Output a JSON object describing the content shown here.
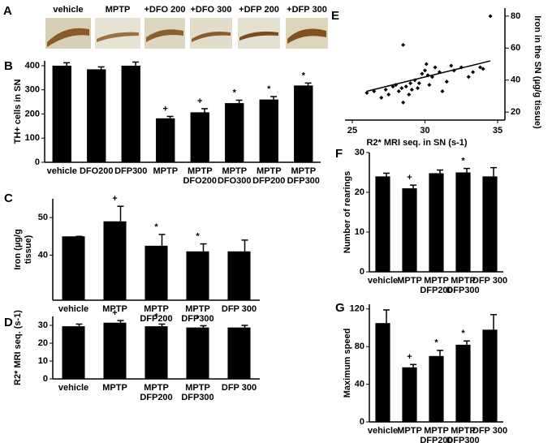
{
  "panel_a": {
    "letter": "A",
    "labels": [
      "vehicle",
      "MPTP",
      "+DFO 200",
      "+DFO 300",
      "+DFP 200",
      "+DFP 300"
    ]
  },
  "chart_data": [
    {
      "type": "bar",
      "panel": "B",
      "ylabel": "TH+ cells in SN",
      "color": "#000000",
      "categories": [
        "vehicle",
        "DFO200",
        "DFP300",
        "MPTP",
        [
          "MPTP",
          "DFO200"
        ],
        [
          "MPTP",
          "DFO300"
        ],
        [
          "MPTP",
          "DFP200"
        ],
        [
          "MPTP",
          "DFP300"
        ]
      ],
      "values": [
        400,
        385,
        400,
        182,
        207,
        245,
        260,
        318
      ],
      "errors": [
        12,
        10,
        15,
        8,
        15,
        12,
        12,
        10
      ],
      "markers": [
        null,
        null,
        null,
        "+",
        "+",
        "*",
        "*",
        "*"
      ],
      "ylim": [
        0,
        420
      ],
      "yticks": [
        0,
        100,
        200,
        300,
        400
      ]
    },
    {
      "type": "bar",
      "panel": "C",
      "ylabel": [
        "Iron (µg/g",
        "tissue)"
      ],
      "color": "#000000",
      "categories": [
        "vehicle",
        "MPTP",
        [
          "MPTP",
          "DFP200"
        ],
        [
          "MPTP",
          "DFP300"
        ],
        "DFP 300"
      ],
      "values": [
        45,
        49,
        42.5,
        41,
        41
      ],
      "errors": [
        0,
        4,
        3,
        2,
        3
      ],
      "markers": [
        null,
        "+",
        "*",
        "*",
        null
      ],
      "ylim": [
        28,
        55
      ],
      "yticks": [
        40,
        50
      ]
    },
    {
      "type": "bar",
      "panel": "D",
      "ylabel": "R2* MRI seq. (s-1)",
      "color": "#000000",
      "categories": [
        "vehicle",
        "MPTP",
        [
          "MPTP",
          "DFP200"
        ],
        [
          "MPTP",
          "DFP300"
        ],
        "DFP 300"
      ],
      "values": [
        29.5,
        31.5,
        29.5,
        28.8,
        28.8
      ],
      "errors": [
        1.2,
        1.2,
        1.2,
        1,
        1.2
      ],
      "markers": [
        null,
        "+",
        "*",
        "*",
        null
      ],
      "ylim": [
        0,
        35
      ],
      "yticks": [
        0,
        10,
        20,
        30
      ]
    },
    {
      "type": "scatter",
      "panel": "E",
      "xlabel": "R2* MRI seq. in SN (s-1)",
      "ylabel": "Iron in the SN (µg/g tissue)",
      "color": "#000000",
      "x": [
        26,
        26.5,
        27,
        27.3,
        27.8,
        28,
        28.2,
        28.4,
        28.5,
        28.7,
        28.9,
        29,
        29.1,
        29.3,
        29.5,
        29.6,
        29.8,
        30,
        30.1,
        30.2,
        30.3,
        30.5,
        30.7,
        31,
        31.2,
        31.5,
        31.8,
        32,
        32.5,
        33,
        33.3,
        33.8,
        34,
        34.5,
        28.5,
        27.5
      ],
      "y": [
        32,
        33,
        29,
        34,
        36,
        37,
        33,
        35,
        62,
        36,
        31,
        38,
        34,
        40,
        35,
        38,
        44,
        46,
        50,
        43,
        37,
        42,
        48,
        45,
        33,
        39,
        49,
        46,
        48,
        42,
        45,
        48,
        47,
        80,
        26,
        31
      ],
      "fit": {
        "x": [
          26,
          34.5
        ],
        "y": [
          33,
          52
        ]
      },
      "xlim": [
        24.5,
        35.5
      ],
      "xticks": [
        25,
        30,
        35
      ],
      "ylim": [
        15,
        85
      ],
      "yticks": [
        20,
        40,
        60,
        80
      ]
    },
    {
      "type": "bar",
      "panel": "F",
      "ylabel": "Number of rearings",
      "color": "#000000",
      "categories": [
        "vehicle",
        "MPTP",
        [
          "MPTP",
          "DFP200"
        ],
        [
          "MPTP",
          "DFP300"
        ],
        "DFP 300"
      ],
      "values": [
        24,
        21,
        24.8,
        25,
        24
      ],
      "errors": [
        0.8,
        0.8,
        0.8,
        1,
        2.2
      ],
      "markers": [
        null,
        "+",
        null,
        "*",
        null
      ],
      "ylim": [
        0,
        30
      ],
      "yticks": [
        0,
        10,
        20,
        30
      ]
    },
    {
      "type": "bar",
      "panel": "G",
      "ylabel": "Maximum speed",
      "color": "#000000",
      "categories": [
        "vehicle",
        "MPTP",
        [
          "MPTP",
          "DFP200"
        ],
        [
          "MPTP",
          "DFP300"
        ],
        "DFP 300"
      ],
      "values": [
        105,
        58,
        70,
        82,
        98
      ],
      "errors": [
        14,
        3,
        6,
        4,
        16
      ],
      "markers": [
        null,
        "+",
        "*",
        "*",
        null
      ],
      "ylim": [
        0,
        125
      ],
      "yticks": [
        0,
        40,
        80,
        120
      ]
    }
  ]
}
